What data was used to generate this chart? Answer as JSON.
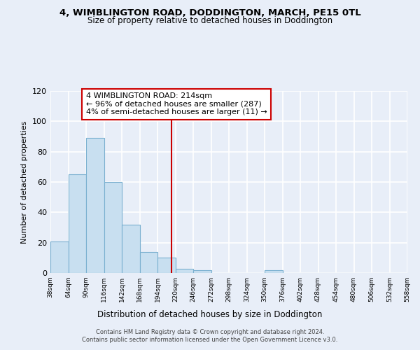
{
  "title": "4, WIMBLINGTON ROAD, DODDINGTON, MARCH, PE15 0TL",
  "subtitle": "Size of property relative to detached houses in Doddington",
  "xlabel": "Distribution of detached houses by size in Doddington",
  "ylabel": "Number of detached properties",
  "bar_edges": [
    38,
    64,
    90,
    116,
    142,
    168,
    194,
    220,
    246,
    272,
    298,
    324,
    350,
    376,
    402,
    428,
    454,
    480,
    506,
    532,
    558
  ],
  "bar_heights": [
    21,
    65,
    89,
    60,
    32,
    14,
    10,
    3,
    2,
    0,
    0,
    0,
    2,
    0,
    0,
    0,
    0,
    0,
    0,
    0
  ],
  "bar_color": "#c8dff0",
  "bar_edgecolor": "#7ab0d0",
  "vline_x": 214,
  "vline_color": "#cc0000",
  "annotation_title": "4 WIMBLINGTON ROAD: 214sqm",
  "annotation_line1": "← 96% of detached houses are smaller (287)",
  "annotation_line2": "4% of semi-detached houses are larger (11) →",
  "annotation_box_edgecolor": "#cc0000",
  "annotation_box_facecolor": "#ffffff",
  "ylim": [
    0,
    120
  ],
  "yticks": [
    0,
    20,
    40,
    60,
    80,
    100,
    120
  ],
  "tick_labels": [
    "38sqm",
    "64sqm",
    "90sqm",
    "116sqm",
    "142sqm",
    "168sqm",
    "194sqm",
    "220sqm",
    "246sqm",
    "272sqm",
    "298sqm",
    "324sqm",
    "350sqm",
    "376sqm",
    "402sqm",
    "428sqm",
    "454sqm",
    "480sqm",
    "506sqm",
    "532sqm",
    "558sqm"
  ],
  "footer_line1": "Contains HM Land Registry data © Crown copyright and database right 2024.",
  "footer_line2": "Contains public sector information licensed under the Open Government Licence v3.0.",
  "bg_color": "#e8eef8",
  "plot_bg_color": "#e8eef8",
  "grid_color": "#ffffff"
}
